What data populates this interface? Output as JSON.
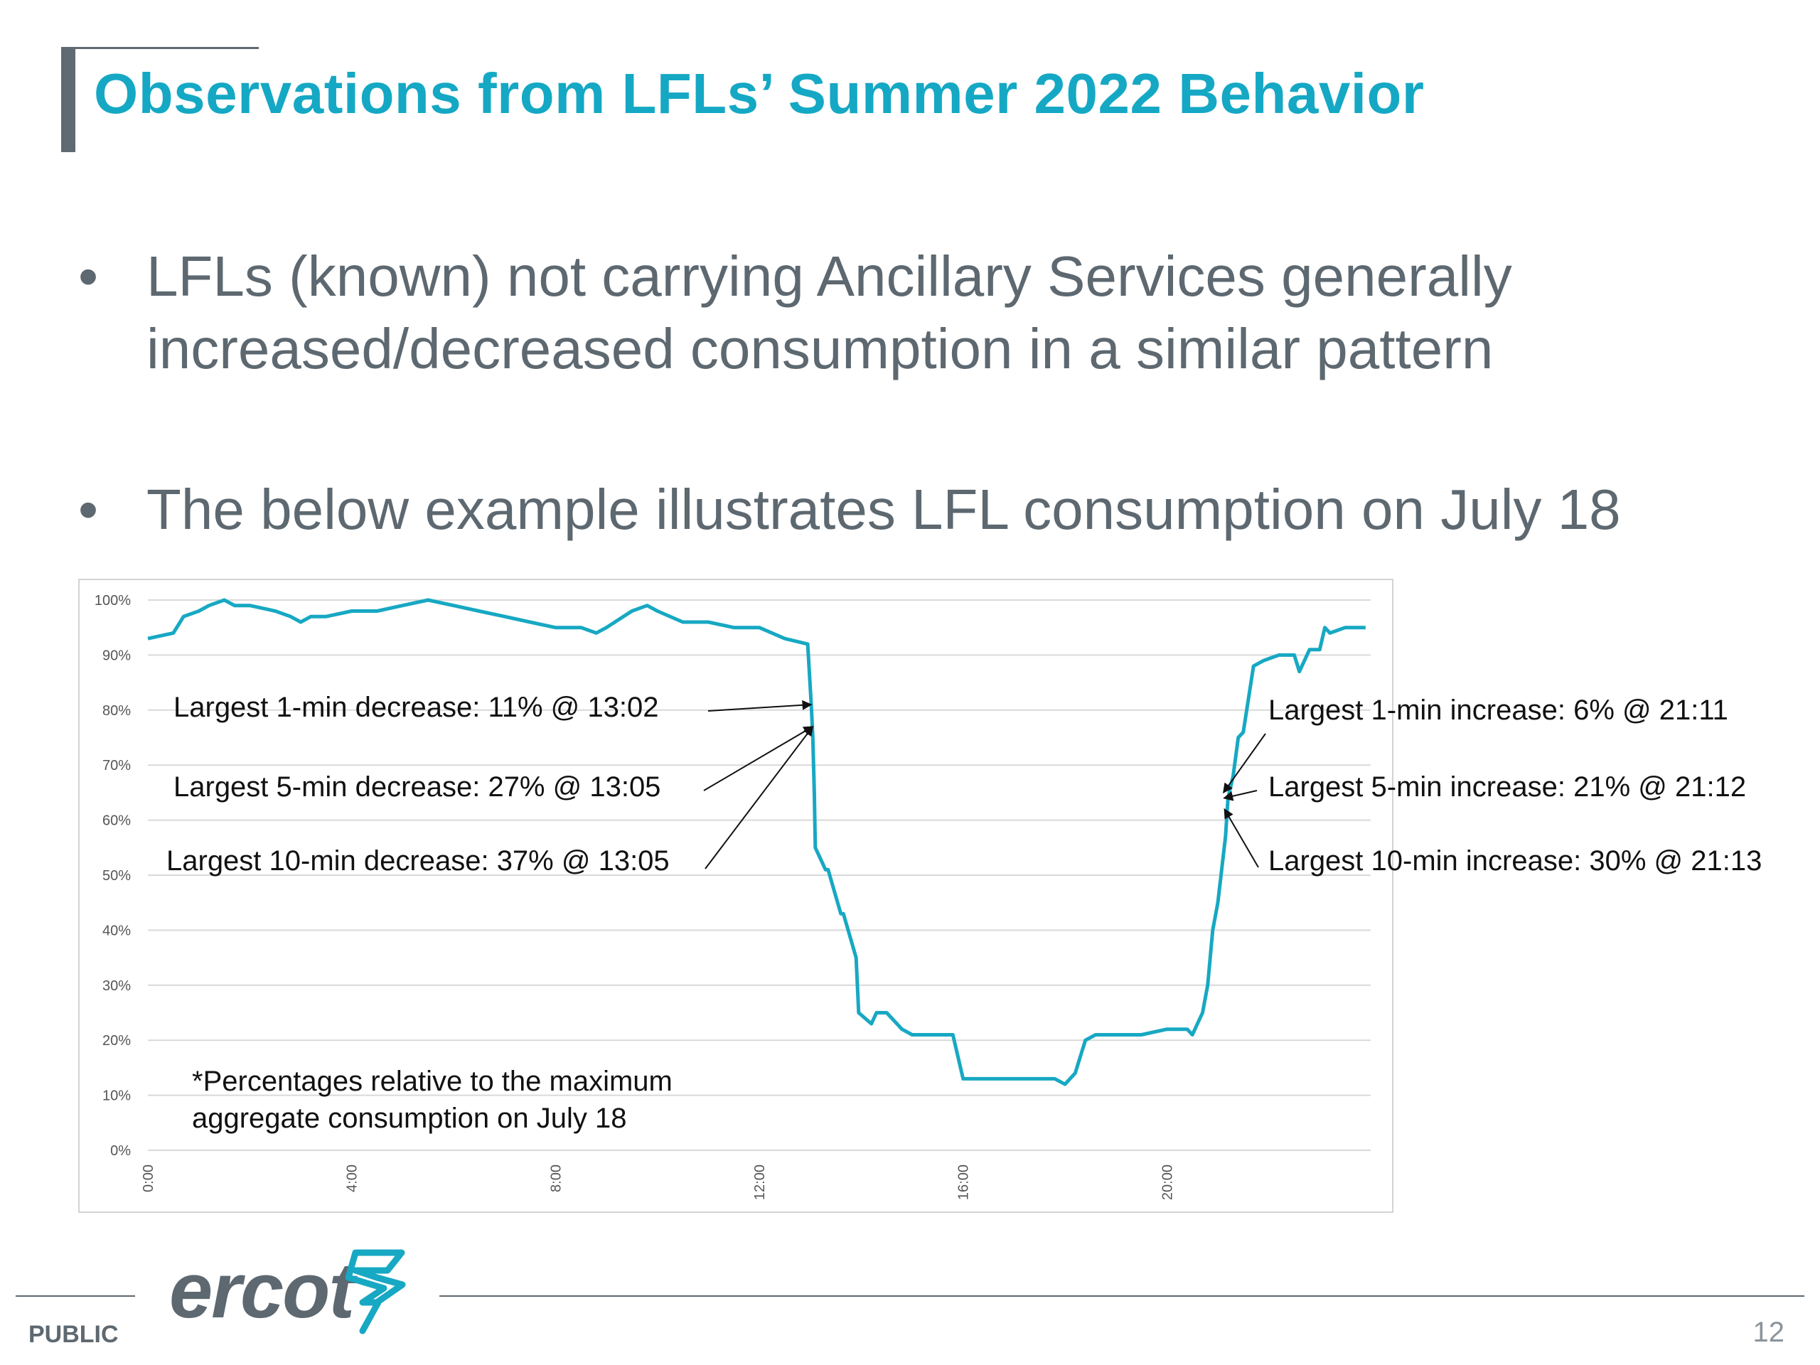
{
  "slide": {
    "title": "Observations from LFLs’ Summer 2022 Behavior",
    "bullet_marker": "•",
    "bullets": [
      "LFLs (known) not carrying Ancillary Services generally increased/decreased consumption in a similar pattern",
      "The below example illustrates LFL consumption on July 18"
    ],
    "footer": {
      "logo_text": "ercot",
      "classification": "PUBLIC",
      "page_number": "12"
    }
  },
  "chart_data": {
    "type": "line",
    "title": "",
    "xlabel": "",
    "ylabel": "",
    "x_ticks": [
      "0:00",
      "4:00",
      "8:00",
      "12:00",
      "16:00",
      "20:00"
    ],
    "y_ticks": [
      "0%",
      "10%",
      "20%",
      "30%",
      "40%",
      "50%",
      "60%",
      "70%",
      "80%",
      "90%",
      "100%"
    ],
    "xlim": [
      0,
      24
    ],
    "ylim": [
      0,
      100
    ],
    "grid": true,
    "colors": {
      "series": "#17a8c3",
      "grid": "#d9d9d9",
      "annotation": "#111111"
    },
    "series": [
      {
        "x": [
          0,
          0.5,
          0.7,
          1.0,
          1.2,
          1.5,
          1.7,
          2.0,
          2.5,
          2.8,
          3.0,
          3.2,
          3.5,
          4.0,
          4.5,
          5.0,
          5.5,
          6.0,
          6.5,
          7.0,
          7.5,
          8.0,
          8.5,
          8.8,
          9.0,
          9.5,
          9.8,
          10.0,
          10.5,
          11.0,
          11.5,
          12.0,
          12.5,
          12.95,
          13.02,
          13.05,
          13.08,
          13.1,
          13.3,
          13.35,
          13.6,
          13.65,
          13.9,
          13.95,
          14.2,
          14.3,
          14.5,
          14.8,
          15.0,
          15.5,
          15.8,
          16.0,
          16.5,
          17.0,
          17.5,
          17.8,
          18.0,
          18.2,
          18.4,
          18.6,
          19.0,
          19.5,
          20.0,
          20.4,
          20.5,
          20.6,
          20.7,
          20.8,
          20.9,
          21.0,
          21.15,
          21.2,
          21.3,
          21.4,
          21.5,
          21.7,
          21.9,
          22.2,
          22.5,
          22.6,
          22.8,
          23.0,
          23.1,
          23.2,
          23.5,
          23.9
        ],
        "y": [
          93,
          94,
          97,
          98,
          99,
          100,
          99,
          99,
          98,
          97,
          96,
          97,
          97,
          98,
          98,
          99,
          100,
          99,
          98,
          97,
          96,
          95,
          95,
          94,
          95,
          98,
          99,
          98,
          96,
          96,
          95,
          95,
          93,
          92,
          81,
          75,
          65,
          55,
          51,
          51,
          43,
          43,
          35,
          25,
          23,
          25,
          25,
          22,
          21,
          21,
          21,
          13,
          13,
          13,
          13,
          13,
          12,
          14,
          20,
          21,
          21,
          21,
          22,
          22,
          21,
          23,
          25,
          30,
          40,
          45,
          57,
          64,
          68,
          75,
          76,
          88,
          89,
          90,
          90,
          87,
          91,
          91,
          95,
          94,
          95,
          95
        ]
      }
    ],
    "annotations": [
      {
        "text": "Largest 1-min decrease: 11% @ 13:02",
        "point": [
          13.02,
          81
        ]
      },
      {
        "text": "Largest 5-min decrease: 27% @ 13:05",
        "point": [
          13.05,
          77
        ]
      },
      {
        "text": "Largest 10-min decrease: 37% @ 13:05",
        "point": [
          13.05,
          77
        ]
      },
      {
        "text": "Largest 1-min increase: 6% @ 21:11",
        "point": [
          21.11,
          65
        ]
      },
      {
        "text": "Largest 5-min increase: 21% @ 21:12",
        "point": [
          21.12,
          64
        ]
      },
      {
        "text": "Largest 10-min increase: 30% @ 21:13",
        "point": [
          21.13,
          62
        ]
      }
    ],
    "note_lines": [
      "*Percentages relative to the maximum",
      "aggregate consumption on July 18"
    ]
  }
}
